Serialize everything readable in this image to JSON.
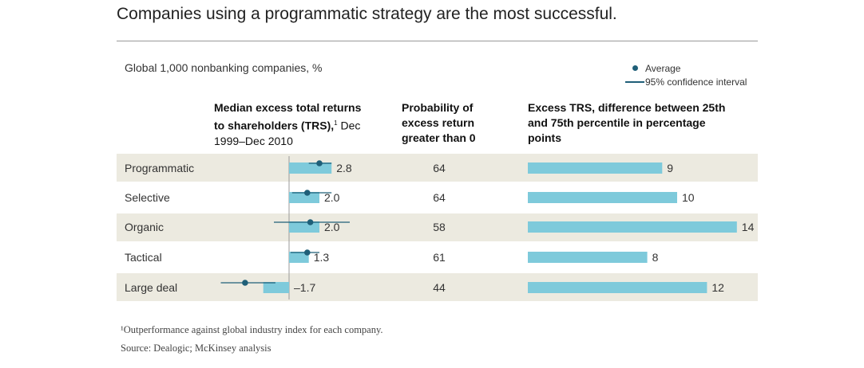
{
  "title": "Companies using a programmatic strategy are the most successful.",
  "subtitle": "Global 1,000 nonbanking companies, %",
  "legend": {
    "average": "Average",
    "ci": "95% confidence interval"
  },
  "headers": {
    "trs_bold": "Median excess total returns to shareholders (TRS),",
    "trs_sup": "1",
    "trs_normal": " Dec 1999–Dec 2010",
    "prob": "Probability of excess return greater than 0",
    "spread": "Excess TRS, difference between 25th and 75th percentile in percentage points"
  },
  "footnote": "¹Outperformance against global industry index for each company.",
  "source": "Source: Dealogic; McKinsey analysis",
  "colors": {
    "bar": "#7ecadb",
    "marker": "#1f5f78",
    "band": "#eceae0"
  },
  "chart_data": [
    {
      "type": "bar",
      "categories": [
        "Programmatic",
        "Selective",
        "Organic",
        "Tactical",
        "Large deal"
      ],
      "values": [
        2.8,
        2.0,
        2.0,
        1.3,
        -1.7
      ],
      "value_labels": [
        "2.8",
        "2.0",
        "2.0",
        "1.3",
        "–1.7"
      ],
      "average": [
        2.0,
        1.2,
        1.4,
        1.2,
        -2.9
      ],
      "ci": [
        [
          1.3,
          2.8
        ],
        [
          0.2,
          2.8
        ],
        [
          -1.0,
          4.0
        ],
        [
          0.1,
          2.0
        ],
        [
          -4.5,
          -0.9
        ]
      ]
    },
    {
      "type": "table",
      "categories": [
        "Programmatic",
        "Selective",
        "Organic",
        "Tactical",
        "Large deal"
      ],
      "values": [
        64,
        64,
        58,
        61,
        44
      ]
    },
    {
      "type": "bar",
      "categories": [
        "Programmatic",
        "Selective",
        "Organic",
        "Tactical",
        "Large deal"
      ],
      "values": [
        9,
        10,
        14,
        8,
        12
      ]
    }
  ]
}
